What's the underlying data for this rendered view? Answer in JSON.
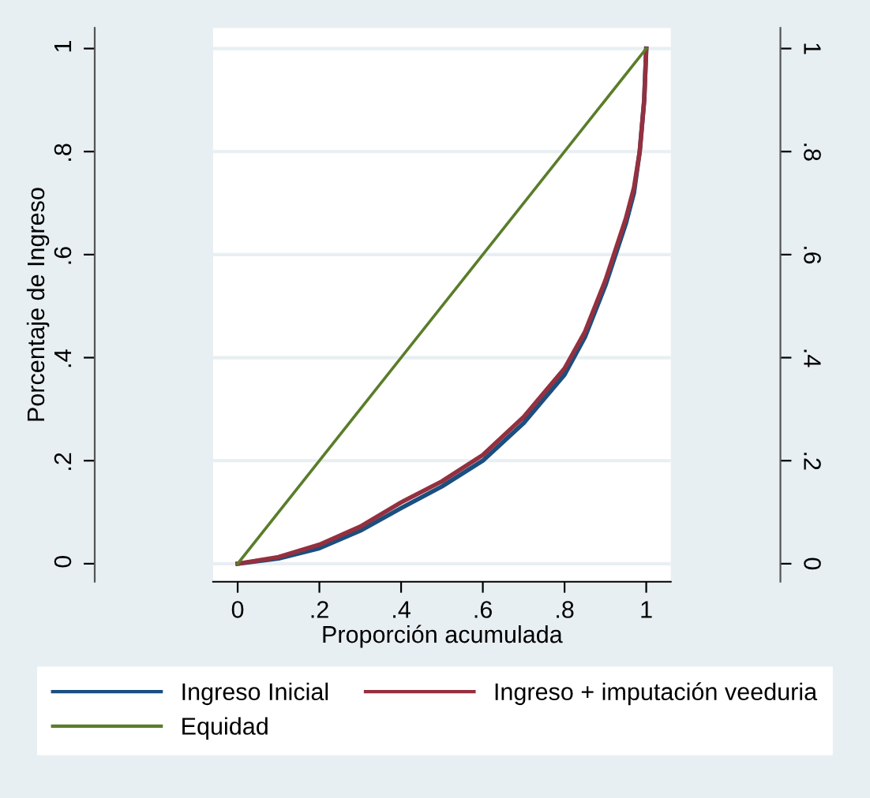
{
  "chart_data": {
    "type": "line",
    "xlabel": "Proporción acumulada",
    "ylabel": "Porcentaje de Ingreso",
    "xlim": [
      -0.06,
      1.06
    ],
    "ylim": [
      -0.035,
      1.04
    ],
    "xticks": [
      {
        "value": 0,
        "label": "0"
      },
      {
        "value": 0.2,
        "label": ".2"
      },
      {
        "value": 0.4,
        "label": ".4"
      },
      {
        "value": 0.6,
        "label": ".6"
      },
      {
        "value": 0.8,
        "label": ".8"
      },
      {
        "value": 1,
        "label": "1"
      }
    ],
    "yticks": [
      {
        "value": 0,
        "label": "0"
      },
      {
        "value": 0.2,
        "label": ".2"
      },
      {
        "value": 0.4,
        "label": ".4"
      },
      {
        "value": 0.6,
        "label": ".6"
      },
      {
        "value": 0.8,
        "label": ".8"
      },
      {
        "value": 1,
        "label": "1"
      }
    ],
    "y2lim": [
      -0.035,
      1.04
    ],
    "y2ticks": [
      {
        "value": 0,
        "label": "0"
      },
      {
        "value": 0.2,
        "label": ".2"
      },
      {
        "value": 0.4,
        "label": ".4"
      },
      {
        "value": 0.6,
        "label": ".6"
      },
      {
        "value": 0.8,
        "label": ".8"
      },
      {
        "value": 1,
        "label": "1"
      }
    ],
    "grid": "y",
    "legend": "bottom",
    "marker": "none",
    "line_style": "solid",
    "x": [
      0,
      0.1,
      0.2,
      0.3,
      0.4,
      0.5,
      0.6,
      0.7,
      0.8,
      0.85,
      0.9,
      0.95,
      0.97,
      0.984,
      0.995,
      1
    ],
    "series": [
      {
        "name": "Ingreso Inicial",
        "color": "#1a4f7f",
        "values": [
          0,
          0.01,
          0.03,
          0.064,
          0.108,
          0.15,
          0.2,
          0.273,
          0.367,
          0.44,
          0.54,
          0.66,
          0.72,
          0.8,
          0.9,
          1
        ]
      },
      {
        "name": "Ingreso + imputación veeduria",
        "color": "#94303f",
        "values": [
          0,
          0.013,
          0.037,
          0.072,
          0.119,
          0.16,
          0.211,
          0.285,
          0.379,
          0.45,
          0.55,
          0.67,
          0.73,
          0.8,
          0.9,
          1
        ]
      },
      {
        "name": "Equidad",
        "color": "#5a7d2a",
        "x": [
          0,
          1
        ],
        "values": [
          0,
          1
        ]
      }
    ]
  }
}
